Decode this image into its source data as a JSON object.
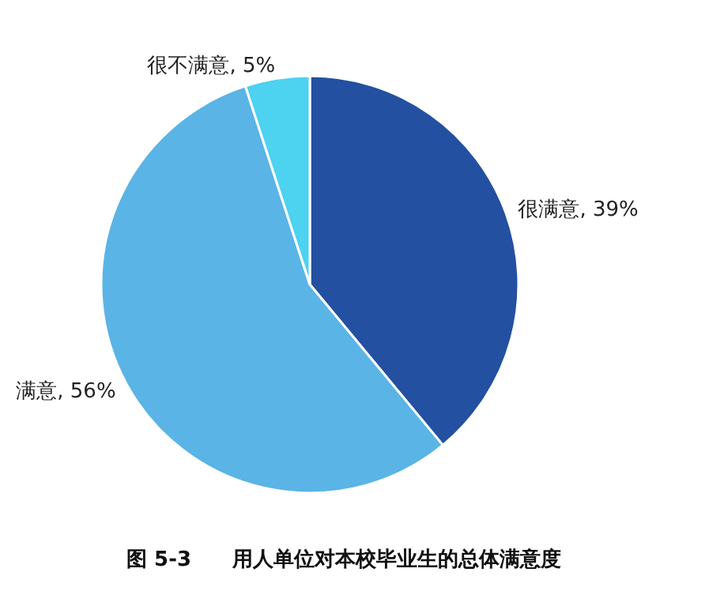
{
  "chart_data": {
    "type": "pie",
    "title": "图 5-3　　用人单位对本校毕业生的总体满意度",
    "categories": [
      "很满意",
      "满意",
      "很不满意"
    ],
    "values": [
      39,
      56,
      5
    ],
    "colors": [
      "#2350a0",
      "#5ab4e6",
      "#4dd2f0"
    ],
    "value_labels": [
      ", 39%",
      ", 56%",
      ", 5%"
    ]
  }
}
